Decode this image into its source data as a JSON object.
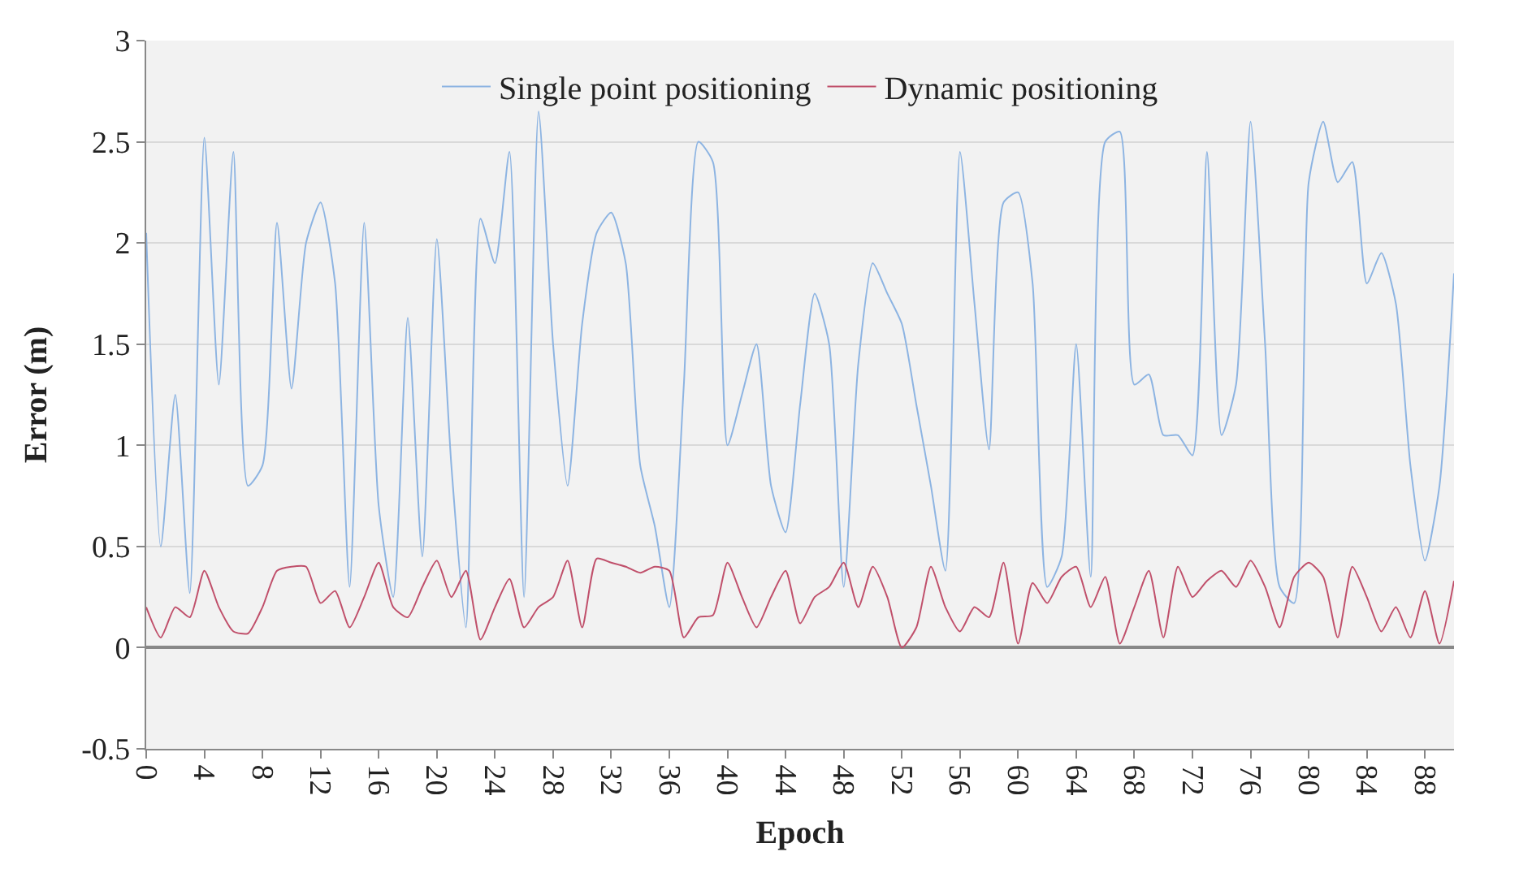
{
  "chart_data": {
    "type": "line",
    "xlabel": "Epoch",
    "ylabel": "Error (m)",
    "x": [
      0,
      1,
      2,
      3,
      4,
      5,
      6,
      7,
      8,
      9,
      10,
      11,
      12,
      13,
      14,
      15,
      16,
      17,
      18,
      19,
      20,
      21,
      22,
      23,
      24,
      25,
      26,
      27,
      28,
      29,
      30,
      31,
      32,
      33,
      34,
      35,
      36,
      37,
      38,
      39,
      40,
      41,
      42,
      43,
      44,
      45,
      46,
      47,
      48,
      49,
      50,
      51,
      52,
      53,
      54,
      55,
      56,
      57,
      58,
      59,
      60,
      61,
      62,
      63,
      64,
      65,
      66,
      67,
      68,
      69,
      70,
      71,
      72,
      73,
      74,
      75,
      76,
      77,
      78,
      79,
      80,
      81,
      82,
      83,
      84,
      85,
      86,
      87,
      88,
      89,
      90
    ],
    "series": [
      {
        "name": "Single point positioning",
        "color": "#8db4e2",
        "values": [
          2.05,
          0.5,
          1.25,
          0.27,
          2.52,
          1.3,
          2.45,
          0.8,
          0.9,
          2.1,
          1.28,
          2.0,
          2.2,
          1.8,
          0.3,
          2.1,
          0.7,
          0.25,
          1.63,
          0.45,
          2.02,
          0.9,
          0.1,
          2.12,
          1.9,
          2.45,
          0.25,
          2.65,
          1.5,
          0.8,
          1.6,
          2.05,
          2.15,
          1.9,
          0.9,
          0.6,
          0.2,
          1.3,
          2.5,
          2.4,
          1.0,
          1.25,
          1.5,
          0.8,
          0.57,
          1.2,
          1.75,
          1.5,
          0.3,
          1.4,
          1.9,
          1.75,
          1.6,
          1.2,
          0.8,
          0.38,
          2.45,
          1.7,
          0.98,
          2.2,
          2.25,
          1.8,
          0.3,
          0.45,
          1.5,
          0.35,
          2.5,
          2.55,
          1.3,
          1.35,
          1.05,
          1.05,
          0.95,
          2.45,
          1.05,
          1.3,
          2.6,
          1.5,
          0.3,
          0.22,
          2.3,
          2.6,
          2.3,
          2.4,
          1.8,
          1.95,
          1.7,
          0.9,
          0.43,
          0.8,
          1.85
        ]
      },
      {
        "name": "Dynamic positioning",
        "color": "#c0506b",
        "values": [
          0.2,
          0.05,
          0.2,
          0.15,
          0.38,
          0.2,
          0.08,
          0.07,
          0.2,
          0.38,
          0.4,
          0.4,
          0.22,
          0.28,
          0.1,
          0.25,
          0.42,
          0.2,
          0.15,
          0.3,
          0.43,
          0.25,
          0.38,
          0.04,
          0.2,
          0.34,
          0.1,
          0.2,
          0.25,
          0.43,
          0.1,
          0.44,
          0.42,
          0.4,
          0.37,
          0.4,
          0.38,
          0.05,
          0.15,
          0.16,
          0.42,
          0.25,
          0.1,
          0.25,
          0.38,
          0.12,
          0.25,
          0.3,
          0.42,
          0.2,
          0.4,
          0.25,
          0.0,
          0.1,
          0.4,
          0.2,
          0.08,
          0.2,
          0.15,
          0.42,
          0.02,
          0.32,
          0.22,
          0.35,
          0.4,
          0.2,
          0.35,
          0.02,
          0.2,
          0.38,
          0.05,
          0.4,
          0.25,
          0.33,
          0.38,
          0.3,
          0.43,
          0.3,
          0.1,
          0.35,
          0.42,
          0.35,
          0.05,
          0.4,
          0.25,
          0.08,
          0.2,
          0.05,
          0.28,
          0.02,
          0.33
        ]
      }
    ],
    "xlim": [
      0,
      90
    ],
    "xticks": [
      0,
      4,
      8,
      12,
      16,
      20,
      24,
      28,
      32,
      36,
      40,
      44,
      48,
      52,
      56,
      60,
      64,
      68,
      72,
      76,
      80,
      84,
      88
    ],
    "ylim": [
      -0.5,
      3
    ],
    "yticks": [
      -0.5,
      0,
      0.5,
      1,
      1.5,
      2,
      2.5,
      3
    ],
    "grid": "y",
    "legend": "top",
    "line_style": "solid",
    "marker": "none"
  }
}
